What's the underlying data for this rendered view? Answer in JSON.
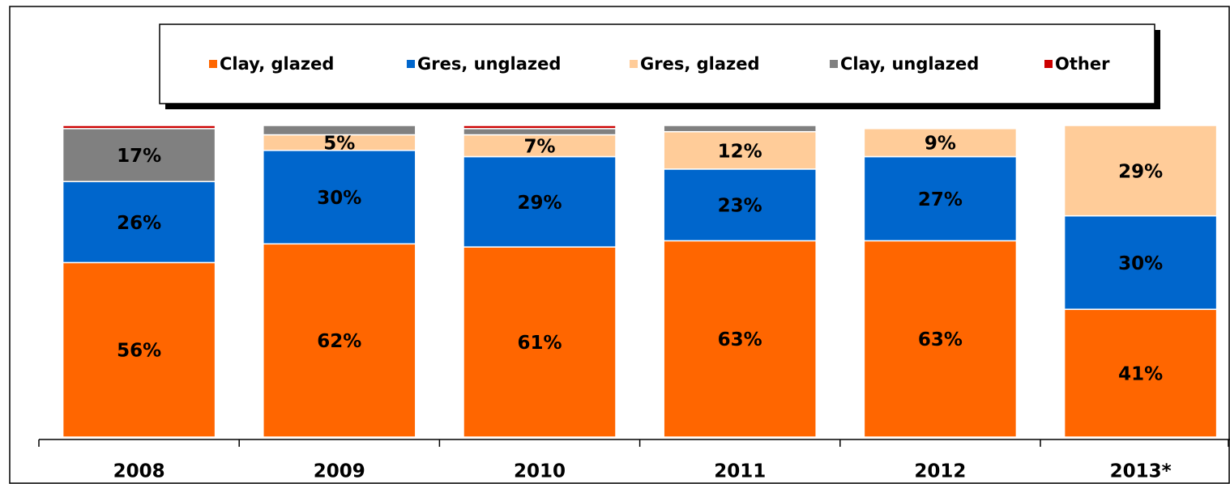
{
  "chart_data": {
    "type": "stacked_bar",
    "categories": [
      "2008",
      "2009",
      "2010",
      "2011",
      "2012",
      "2013*"
    ],
    "ylim": [
      0,
      100
    ],
    "legend": "top",
    "series": [
      {
        "name": "Clay, glazed",
        "color": "#ff6600",
        "values": [
          56,
          62,
          61,
          63,
          63,
          41
        ],
        "value_labels": [
          "56%",
          "62%",
          "61%",
          "63%",
          "63%",
          "41%"
        ]
      },
      {
        "name": "Gres, unglazed",
        "color": "#0066cc",
        "values": [
          26,
          30,
          29,
          23,
          27,
          30
        ],
        "value_labels": [
          "26%",
          "30%",
          "29%",
          "23%",
          "27%",
          "30%"
        ]
      },
      {
        "name": "Gres, glazed",
        "color": "#ffcc99",
        "values": [
          0,
          5,
          7,
          12,
          9,
          29
        ],
        "value_labels": [
          null,
          "5%",
          "7%",
          "12%",
          "9%",
          "29%"
        ]
      },
      {
        "name": "Clay, unglazed",
        "color": "#808080",
        "values": [
          17,
          3,
          2,
          2,
          0,
          0
        ],
        "value_labels": [
          "17%",
          null,
          null,
          null,
          null,
          null
        ]
      },
      {
        "name": "Other",
        "color": "#cc0000",
        "values": [
          1,
          0,
          1,
          0,
          0,
          0
        ],
        "value_labels": [
          null,
          null,
          null,
          null,
          null,
          null
        ]
      }
    ]
  }
}
